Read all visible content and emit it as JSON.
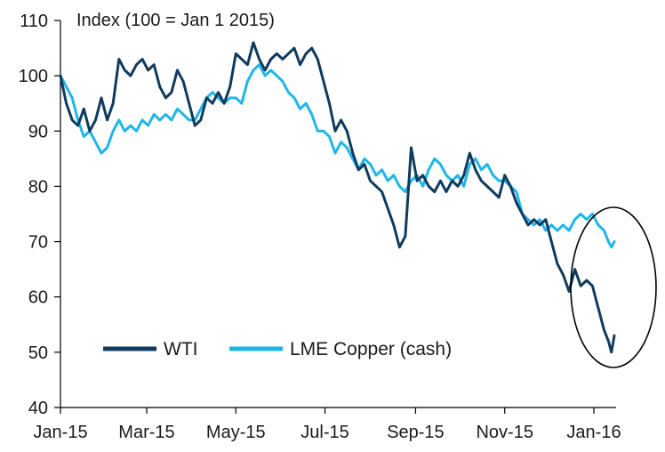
{
  "chart_data": {
    "type": "line",
    "title": "Index (100 = Jan 1 2015)",
    "xlabel": "",
    "ylabel": "",
    "ylim": [
      40,
      110
    ],
    "yticks": [
      40,
      50,
      60,
      70,
      80,
      90,
      100,
      110
    ],
    "x_axis": {
      "tick_labels": [
        "Jan-15",
        "Mar-15",
        "May-15",
        "Jul-15",
        "Sep-15",
        "Nov-15",
        "Jan-16"
      ],
      "tick_dates": [
        "2015-01-01",
        "2015-03-01",
        "2015-05-01",
        "2015-07-01",
        "2015-09-01",
        "2015-11-01",
        "2016-01-01"
      ],
      "range": [
        "2015-01-01",
        "2016-01-15"
      ]
    },
    "grid": false,
    "legend_position": "bottom-left",
    "annotation": "ellipse circling the final two weeks of both series",
    "series": [
      {
        "name": "WTI",
        "color": "#0f3b5f",
        "points": [
          [
            "2015-01-01",
            100
          ],
          [
            "2015-01-05",
            95
          ],
          [
            "2015-01-09",
            92
          ],
          [
            "2015-01-13",
            91
          ],
          [
            "2015-01-17",
            94
          ],
          [
            "2015-01-21",
            90
          ],
          [
            "2015-01-25",
            92
          ],
          [
            "2015-01-29",
            96
          ],
          [
            "2015-02-02",
            92
          ],
          [
            "2015-02-06",
            95
          ],
          [
            "2015-02-10",
            103
          ],
          [
            "2015-02-14",
            101
          ],
          [
            "2015-02-18",
            100
          ],
          [
            "2015-02-22",
            102
          ],
          [
            "2015-02-26",
            103
          ],
          [
            "2015-03-02",
            101
          ],
          [
            "2015-03-06",
            102
          ],
          [
            "2015-03-10",
            98
          ],
          [
            "2015-03-14",
            96
          ],
          [
            "2015-03-18",
            97
          ],
          [
            "2015-03-22",
            101
          ],
          [
            "2015-03-26",
            99
          ],
          [
            "2015-03-30",
            95
          ],
          [
            "2015-04-03",
            91
          ],
          [
            "2015-04-07",
            92
          ],
          [
            "2015-04-11",
            96
          ],
          [
            "2015-04-15",
            95
          ],
          [
            "2015-04-19",
            97
          ],
          [
            "2015-04-23",
            95
          ],
          [
            "2015-04-27",
            98
          ],
          [
            "2015-05-01",
            104
          ],
          [
            "2015-05-05",
            103
          ],
          [
            "2015-05-09",
            102
          ],
          [
            "2015-05-13",
            106
          ],
          [
            "2015-05-17",
            103
          ],
          [
            "2015-05-21",
            101
          ],
          [
            "2015-05-25",
            103
          ],
          [
            "2015-05-29",
            104
          ],
          [
            "2015-06-02",
            103
          ],
          [
            "2015-06-06",
            104
          ],
          [
            "2015-06-10",
            105
          ],
          [
            "2015-06-14",
            102
          ],
          [
            "2015-06-18",
            104
          ],
          [
            "2015-06-22",
            105
          ],
          [
            "2015-06-26",
            103
          ],
          [
            "2015-06-30",
            99
          ],
          [
            "2015-07-04",
            95
          ],
          [
            "2015-07-08",
            90
          ],
          [
            "2015-07-12",
            92
          ],
          [
            "2015-07-16",
            90
          ],
          [
            "2015-07-20",
            86
          ],
          [
            "2015-07-24",
            83
          ],
          [
            "2015-07-28",
            84
          ],
          [
            "2015-08-01",
            81
          ],
          [
            "2015-08-05",
            80
          ],
          [
            "2015-08-09",
            79
          ],
          [
            "2015-08-13",
            76
          ],
          [
            "2015-08-17",
            73
          ],
          [
            "2015-08-21",
            69
          ],
          [
            "2015-08-25",
            71
          ],
          [
            "2015-08-29",
            87
          ],
          [
            "2015-09-02",
            81
          ],
          [
            "2015-09-06",
            82
          ],
          [
            "2015-09-10",
            80
          ],
          [
            "2015-09-14",
            79
          ],
          [
            "2015-09-18",
            81
          ],
          [
            "2015-09-22",
            79
          ],
          [
            "2015-09-26",
            81
          ],
          [
            "2015-09-30",
            80
          ],
          [
            "2015-10-04",
            82
          ],
          [
            "2015-10-08",
            86
          ],
          [
            "2015-10-12",
            83
          ],
          [
            "2015-10-16",
            81
          ],
          [
            "2015-10-20",
            80
          ],
          [
            "2015-10-24",
            79
          ],
          [
            "2015-10-28",
            78
          ],
          [
            "2015-11-01",
            82
          ],
          [
            "2015-11-05",
            80
          ],
          [
            "2015-11-09",
            77
          ],
          [
            "2015-11-13",
            75
          ],
          [
            "2015-11-17",
            73
          ],
          [
            "2015-11-21",
            74
          ],
          [
            "2015-11-25",
            73
          ],
          [
            "2015-11-29",
            74
          ],
          [
            "2015-12-03",
            70
          ],
          [
            "2015-12-07",
            66
          ],
          [
            "2015-12-11",
            64
          ],
          [
            "2015-12-15",
            61
          ],
          [
            "2015-12-19",
            65
          ],
          [
            "2015-12-23",
            62
          ],
          [
            "2015-12-27",
            63
          ],
          [
            "2015-12-31",
            62
          ],
          [
            "2016-01-04",
            58
          ],
          [
            "2016-01-08",
            54
          ],
          [
            "2016-01-11",
            52
          ],
          [
            "2016-01-13",
            50
          ],
          [
            "2016-01-15",
            53
          ]
        ]
      },
      {
        "name": "LME Copper (cash)",
        "color": "#1fb6ea",
        "points": [
          [
            "2015-01-01",
            100
          ],
          [
            "2015-01-05",
            98
          ],
          [
            "2015-01-09",
            96
          ],
          [
            "2015-01-13",
            92
          ],
          [
            "2015-01-17",
            89
          ],
          [
            "2015-01-21",
            90
          ],
          [
            "2015-01-25",
            88
          ],
          [
            "2015-01-29",
            86
          ],
          [
            "2015-02-02",
            87
          ],
          [
            "2015-02-06",
            90
          ],
          [
            "2015-02-10",
            92
          ],
          [
            "2015-02-14",
            90
          ],
          [
            "2015-02-18",
            91
          ],
          [
            "2015-02-22",
            90
          ],
          [
            "2015-02-26",
            92
          ],
          [
            "2015-03-02",
            91
          ],
          [
            "2015-03-06",
            93
          ],
          [
            "2015-03-10",
            92
          ],
          [
            "2015-03-14",
            93
          ],
          [
            "2015-03-18",
            92
          ],
          [
            "2015-03-22",
            94
          ],
          [
            "2015-03-26",
            93
          ],
          [
            "2015-03-30",
            92
          ],
          [
            "2015-04-03",
            92
          ],
          [
            "2015-04-07",
            94
          ],
          [
            "2015-04-11",
            96
          ],
          [
            "2015-04-15",
            97
          ],
          [
            "2015-04-19",
            96
          ],
          [
            "2015-04-23",
            95
          ],
          [
            "2015-04-27",
            96
          ],
          [
            "2015-05-01",
            96
          ],
          [
            "2015-05-05",
            95
          ],
          [
            "2015-05-09",
            99
          ],
          [
            "2015-05-13",
            101
          ],
          [
            "2015-05-17",
            102
          ],
          [
            "2015-05-21",
            100
          ],
          [
            "2015-05-25",
            101
          ],
          [
            "2015-05-29",
            100
          ],
          [
            "2015-06-02",
            99
          ],
          [
            "2015-06-06",
            97
          ],
          [
            "2015-06-10",
            96
          ],
          [
            "2015-06-14",
            94
          ],
          [
            "2015-06-18",
            95
          ],
          [
            "2015-06-22",
            93
          ],
          [
            "2015-06-26",
            90
          ],
          [
            "2015-06-30",
            90
          ],
          [
            "2015-07-04",
            89
          ],
          [
            "2015-07-08",
            86
          ],
          [
            "2015-07-12",
            88
          ],
          [
            "2015-07-16",
            87
          ],
          [
            "2015-07-20",
            85
          ],
          [
            "2015-07-24",
            83
          ],
          [
            "2015-07-28",
            85
          ],
          [
            "2015-08-01",
            84
          ],
          [
            "2015-08-05",
            82
          ],
          [
            "2015-08-09",
            83
          ],
          [
            "2015-08-13",
            81
          ],
          [
            "2015-08-17",
            82
          ],
          [
            "2015-08-21",
            80
          ],
          [
            "2015-08-25",
            79
          ],
          [
            "2015-08-29",
            81
          ],
          [
            "2015-09-02",
            82
          ],
          [
            "2015-09-06",
            80
          ],
          [
            "2015-09-10",
            83
          ],
          [
            "2015-09-14",
            85
          ],
          [
            "2015-09-18",
            84
          ],
          [
            "2015-09-22",
            82
          ],
          [
            "2015-09-26",
            81
          ],
          [
            "2015-09-30",
            82
          ],
          [
            "2015-10-04",
            80
          ],
          [
            "2015-10-08",
            84
          ],
          [
            "2015-10-12",
            85
          ],
          [
            "2015-10-16",
            83
          ],
          [
            "2015-10-20",
            84
          ],
          [
            "2015-10-24",
            82
          ],
          [
            "2015-10-28",
            81
          ],
          [
            "2015-11-01",
            81
          ],
          [
            "2015-11-05",
            80
          ],
          [
            "2015-11-09",
            79
          ],
          [
            "2015-11-13",
            75
          ],
          [
            "2015-11-17",
            74
          ],
          [
            "2015-11-21",
            73
          ],
          [
            "2015-11-25",
            74
          ],
          [
            "2015-11-29",
            72
          ],
          [
            "2015-12-03",
            73
          ],
          [
            "2015-12-07",
            72
          ],
          [
            "2015-12-11",
            73
          ],
          [
            "2015-12-15",
            72
          ],
          [
            "2015-12-19",
            74
          ],
          [
            "2015-12-23",
            75
          ],
          [
            "2015-12-27",
            74
          ],
          [
            "2015-12-31",
            75
          ],
          [
            "2016-01-04",
            73
          ],
          [
            "2016-01-08",
            72
          ],
          [
            "2016-01-11",
            70
          ],
          [
            "2016-01-13",
            69
          ],
          [
            "2016-01-15",
            70
          ]
        ]
      }
    ]
  }
}
